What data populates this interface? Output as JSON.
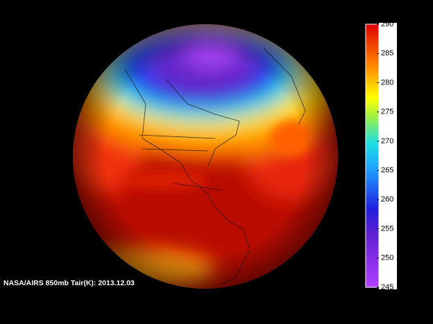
{
  "caption": "NASA/AIRS 850mb Tair(K): 2013.12.03",
  "colorbar": {
    "lim": [
      245,
      290
    ],
    "ticks": [
      245,
      250,
      255,
      260,
      265,
      270,
      275,
      280,
      285,
      290
    ]
  }
}
